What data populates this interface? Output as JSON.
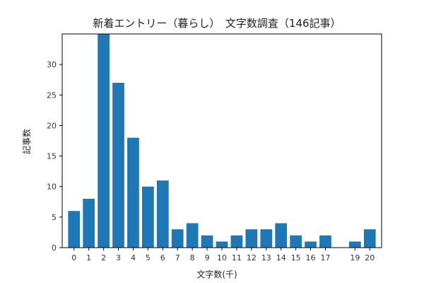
{
  "chart_data": {
    "type": "bar",
    "title": "新着エントリー（暮らし）　文字数調査（146記事）",
    "xlabel": "文字数(千)",
    "ylabel": "記事数",
    "x": [
      0,
      1,
      2,
      3,
      4,
      5,
      6,
      7,
      8,
      9,
      10,
      11,
      12,
      13,
      14,
      15,
      16,
      17,
      19,
      20
    ],
    "values": [
      6,
      8,
      35,
      27,
      18,
      10,
      11,
      3,
      4,
      2,
      1,
      2,
      3,
      3,
      4,
      2,
      1,
      2,
      1,
      3
    ],
    "xlim": [
      -0.8,
      20.8
    ],
    "ylim": [
      0,
      35
    ],
    "yticks": [
      0,
      5,
      10,
      15,
      20,
      25,
      30
    ],
    "bar_width": 0.8,
    "grid": false,
    "colors": {
      "bar": "#1f77b4",
      "axis": "#000000"
    }
  }
}
